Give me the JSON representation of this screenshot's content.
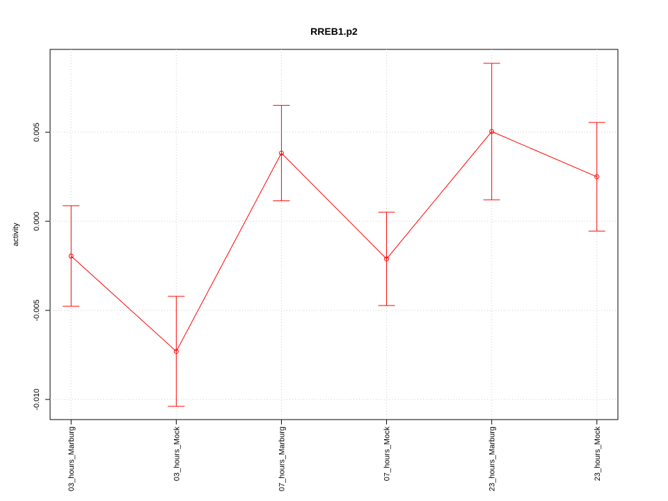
{
  "chart_data": {
    "type": "line",
    "title": "RREB1.p2",
    "y_label": "activity",
    "categories": [
      "03_hours_Marburg",
      "03_hours_Mock",
      "07_hours_Marburg",
      "07_hours_Mock",
      "23_hours_Marburg",
      "23_hours_Mock"
    ],
    "series": [
      {
        "name": "activity",
        "color": "#ff0000",
        "values": [
          -0.00195,
          -0.0073,
          0.00383,
          -0.00211,
          0.00504,
          0.0025
        ],
        "errors": [
          0.00282,
          0.00309,
          0.00268,
          0.00262,
          0.00383,
          0.00305
        ]
      }
    ],
    "ylim": [
      -0.01113,
      0.00965
    ],
    "yticks": [
      {
        "value": -0.01,
        "label": "-0.010"
      },
      {
        "value": -0.005,
        "label": "-0.005"
      },
      {
        "value": 0,
        "label": "0.000"
      },
      {
        "value": 0.005,
        "label": "0.005"
      }
    ],
    "grid": true
  }
}
